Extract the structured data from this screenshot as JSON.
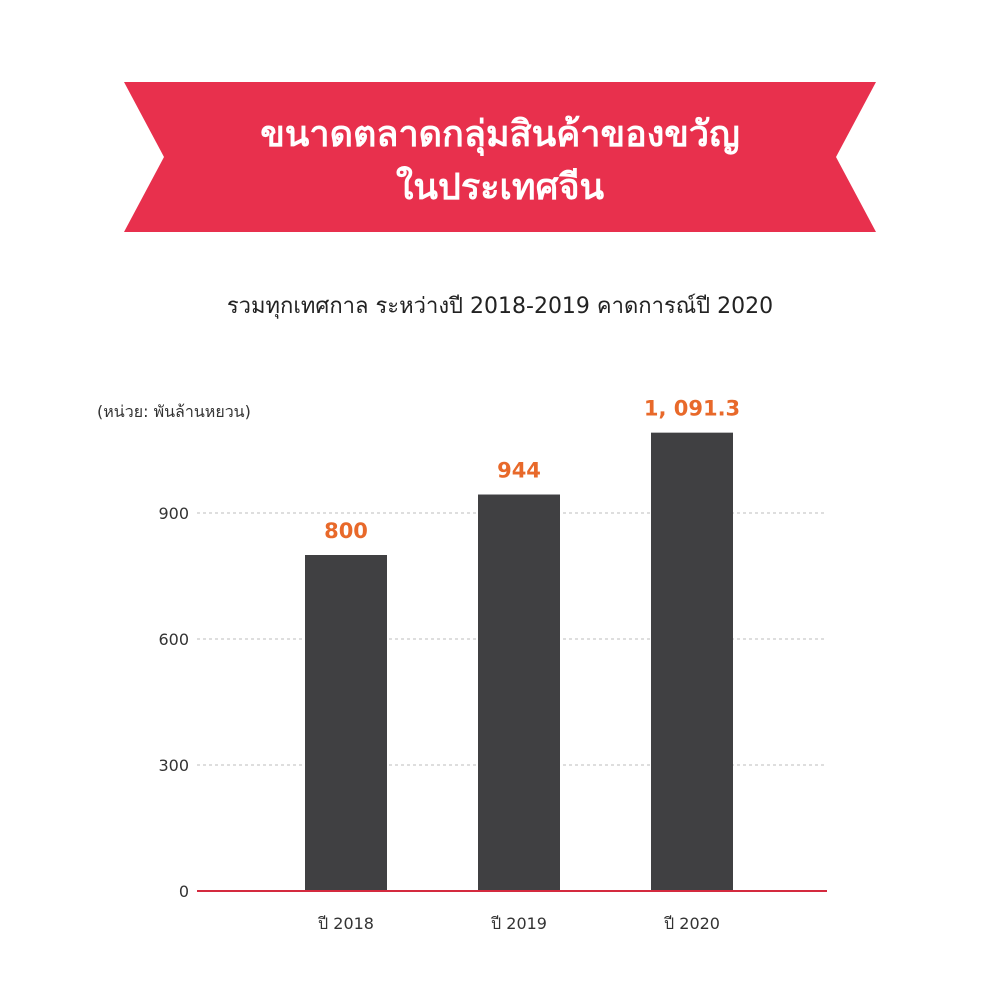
{
  "colors": {
    "banner": "#e8304d",
    "bar": "#404042",
    "value_label": "#e8692a",
    "axis": "#d42a3f",
    "grid": "#bdbdbd"
  },
  "chart_data": {
    "type": "bar",
    "title": "ขนาดตลาดกลุ่มสินค้าของขวัญ\nในประเทศจีน",
    "title_lines": [
      "ขนาดตลาดกลุ่มสินค้าของขวัญ",
      "ในประเทศจีน"
    ],
    "subtitle": "รวมทุกเทศกาล ระหว่างปี 2018-2019 คาดการณ์ปี 2020",
    "ylabel": "(หน่วย: พันล้านหยวน)",
    "xlabel": "",
    "categories": [
      "ปี 2018",
      "ปี 2019",
      "ปี 2020"
    ],
    "values": [
      800,
      944,
      1091.3
    ],
    "value_labels": [
      "800",
      "944",
      "1, 091.3"
    ],
    "yticks": [
      0,
      300,
      600,
      900
    ],
    "ylim": [
      0,
      1100
    ],
    "grid": true,
    "legend": "none"
  }
}
